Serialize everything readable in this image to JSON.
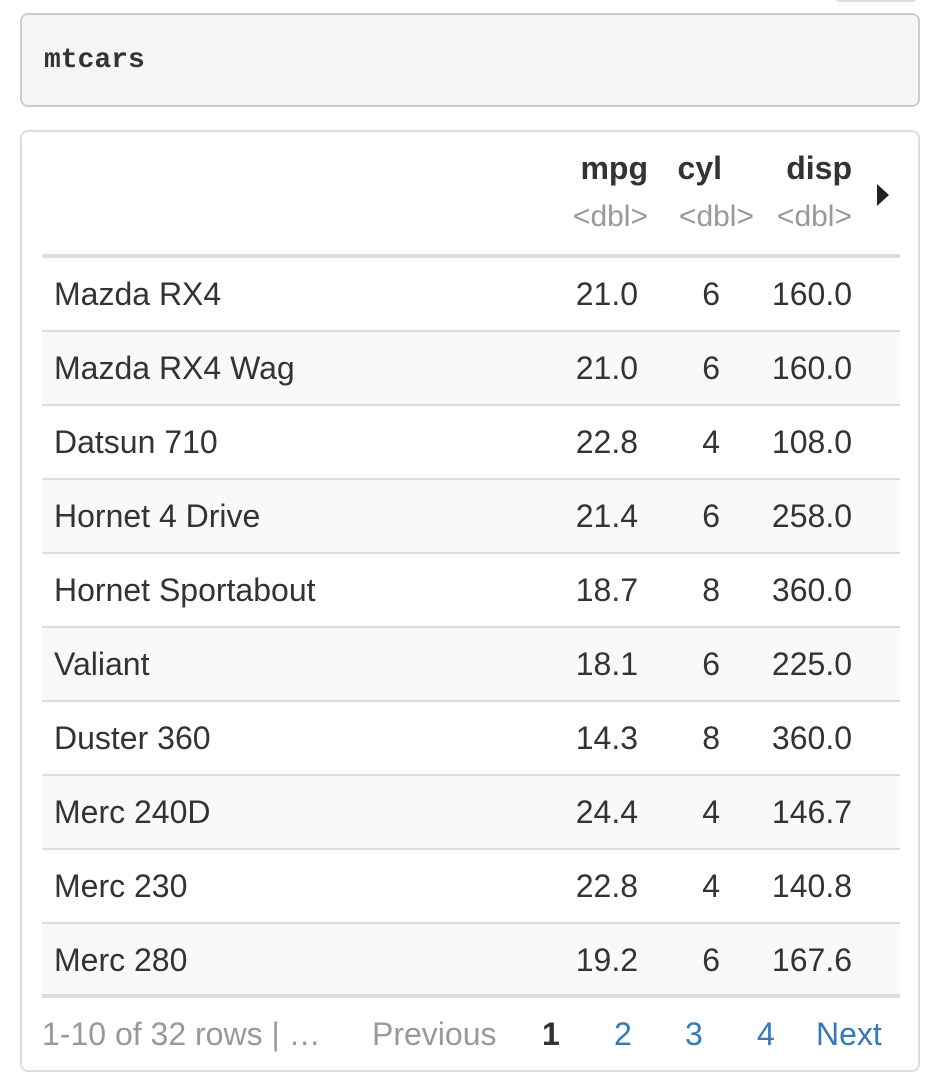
{
  "code": {
    "text": "mtcars"
  },
  "table": {
    "columns": [
      {
        "name": "mpg",
        "type": "<dbl>"
      },
      {
        "name": "cyl",
        "type": "<dbl>"
      },
      {
        "name": "disp",
        "type": "<dbl>"
      }
    ],
    "rows": [
      {
        "name": "Mazda RX4",
        "mpg": "21.0",
        "cyl": "6",
        "disp": "160.0"
      },
      {
        "name": "Mazda RX4 Wag",
        "mpg": "21.0",
        "cyl": "6",
        "disp": "160.0"
      },
      {
        "name": "Datsun 710",
        "mpg": "22.8",
        "cyl": "4",
        "disp": "108.0"
      },
      {
        "name": "Hornet 4 Drive",
        "mpg": "21.4",
        "cyl": "6",
        "disp": "258.0"
      },
      {
        "name": "Hornet Sportabout",
        "mpg": "18.7",
        "cyl": "8",
        "disp": "360.0"
      },
      {
        "name": "Valiant",
        "mpg": "18.1",
        "cyl": "6",
        "disp": "225.0"
      },
      {
        "name": "Duster 360",
        "mpg": "14.3",
        "cyl": "8",
        "disp": "360.0"
      },
      {
        "name": "Merc 240D",
        "mpg": "24.4",
        "cyl": "4",
        "disp": "146.7"
      },
      {
        "name": "Merc 230",
        "mpg": "22.8",
        "cyl": "4",
        "disp": "140.8"
      },
      {
        "name": "Merc 280",
        "mpg": "19.2",
        "cyl": "6",
        "disp": "167.6"
      }
    ]
  },
  "pager": {
    "info": "1-10 of 32 rows | …",
    "previous": "Previous",
    "pages": [
      "1",
      "2",
      "3",
      "4"
    ],
    "current_page": "1",
    "next": "Next"
  },
  "icons": {
    "next_columns": "caret-right-icon"
  },
  "colors": {
    "link": "#337ab7",
    "muted": "#999999",
    "text": "#333333",
    "border": "#dddddd",
    "code_bg": "#f5f5f5"
  }
}
